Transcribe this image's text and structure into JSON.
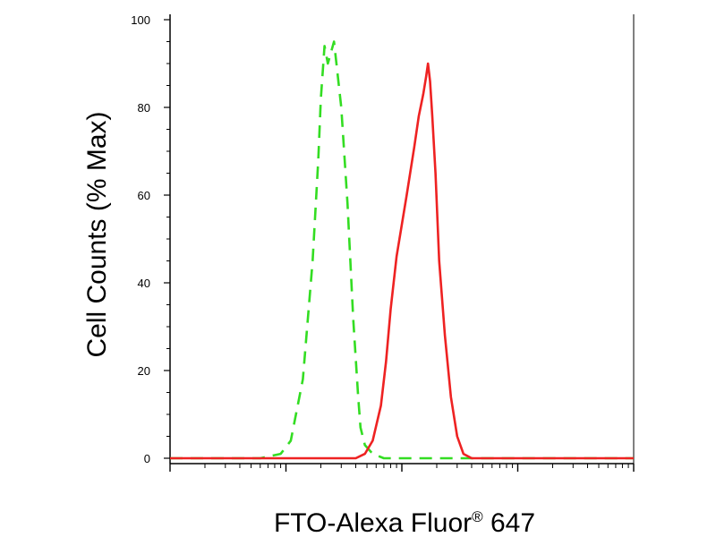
{
  "chart_data": {
    "type": "line",
    "title": "",
    "xlabel": "FTO-Alexa Fluor",
    "xlabel_superscript": "®",
    "xlabel_suffix": " 647",
    "ylabel": "Cell Counts (% Max)",
    "x_scale": "log",
    "x_ticks_labeled": false,
    "ylim": [
      0,
      100
    ],
    "yticks": [
      "0",
      "20",
      "40",
      "60",
      "80",
      "100"
    ],
    "grid": false,
    "legend": "none",
    "series": [
      {
        "style": "dashed",
        "color": "#33dd22",
        "x": [
          10,
          20,
          60,
          90,
          110,
          140,
          170,
          190,
          200,
          215,
          230,
          260,
          300,
          340,
          380,
          420,
          440,
          480,
          560,
          700,
          900,
          1500,
          5000,
          100000
        ],
        "y": [
          0,
          0,
          0,
          1,
          4,
          18,
          45,
          68,
          82,
          94,
          90,
          95,
          80,
          58,
          32,
          14,
          7,
          3,
          1,
          0,
          0,
          0,
          0,
          0
        ]
      },
      {
        "style": "solid",
        "color": "#ee2222",
        "x": [
          10,
          100,
          400,
          480,
          560,
          660,
          730,
          800,
          900,
          1100,
          1280,
          1400,
          1530,
          1620,
          1680,
          1750,
          1830,
          1950,
          2100,
          2350,
          2650,
          3000,
          3400,
          4000,
          6000,
          100000
        ],
        "y": [
          0,
          0,
          0,
          1,
          4,
          12,
          22,
          34,
          46,
          60,
          71,
          78,
          83,
          87,
          90,
          86,
          78,
          65,
          45,
          28,
          14,
          5,
          1,
          0,
          0,
          0
        ]
      }
    ]
  },
  "colors": {
    "axis": "#000000",
    "background": "#ffffff"
  }
}
